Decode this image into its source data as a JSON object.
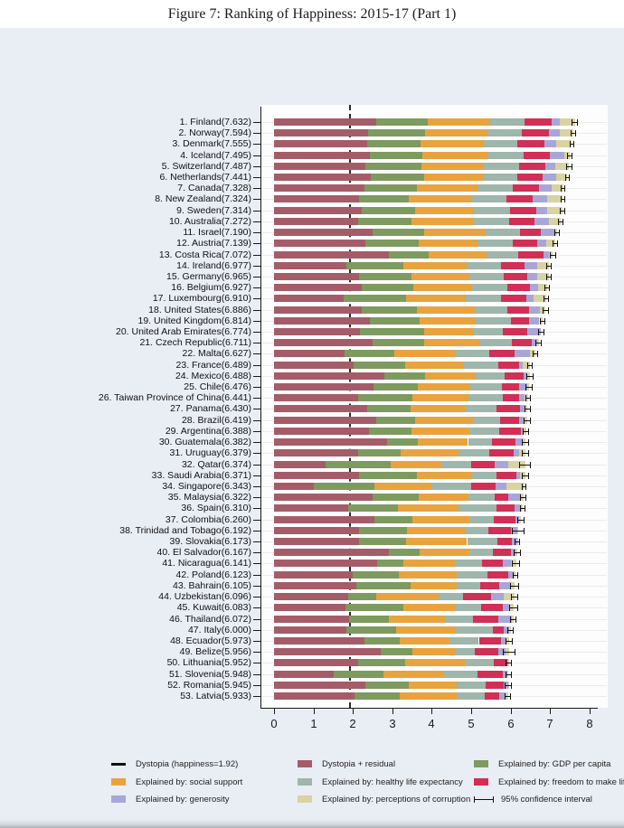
{
  "figure": {
    "title": "Figure 7: Ranking of Happiness: 2015-17 (Part 1)"
  },
  "chart_data": {
    "type": "bar",
    "orientation": "horizontal",
    "stacked": true,
    "title": "Figure 7: Ranking of Happiness: 2015-17 (Part 1)",
    "xlabel": "",
    "ylabel": "",
    "xlim": [
      0,
      8.2
    ],
    "x_ticks": [
      0,
      1,
      2,
      3,
      4,
      5,
      6,
      7,
      8
    ],
    "grid": "faint horizontal row lines",
    "legend_position": "bottom",
    "dystopia_reference_value": 1.92,
    "segment_keys": [
      "dystopia_residual",
      "gdp_per_capita",
      "social_support",
      "healthy_life_expectancy",
      "freedom",
      "generosity",
      "perceptions_of_corruption"
    ],
    "segment_colors": {
      "dystopia_residual": "#a55c69",
      "gdp_per_capita": "#7d9a5f",
      "social_support": "#e8a33e",
      "healthy_life_expectancy": "#9eb6ab",
      "freedom": "#d12f56",
      "generosity": "#a8a6d8",
      "perceptions_of_corruption": "#d9d2a2"
    },
    "countries": [
      {
        "rank": 1,
        "name": "Finland",
        "score": 7.632,
        "segments": [
          2.585,
          1.305,
          1.592,
          0.874,
          0.681,
          0.202,
          0.393
        ],
        "ci": 0.077
      },
      {
        "rank": 2,
        "name": "Norway",
        "score": 7.594,
        "segments": [
          2.383,
          1.456,
          1.582,
          0.861,
          0.686,
          0.286,
          0.34
        ],
        "ci": 0.063
      },
      {
        "rank": 3,
        "name": "Denmark",
        "score": 7.555,
        "segments": [
          2.371,
          1.351,
          1.59,
          0.868,
          0.683,
          0.284,
          0.408
        ],
        "ci": 0.066
      },
      {
        "rank": 4,
        "name": "Iceland",
        "score": 7.495,
        "segments": [
          2.426,
          1.343,
          1.644,
          0.914,
          0.677,
          0.353,
          0.138
        ],
        "ci": 0.063
      },
      {
        "rank": 5,
        "name": "Switzerland",
        "score": 7.487,
        "segments": [
          2.318,
          1.42,
          1.549,
          0.927,
          0.66,
          0.256,
          0.357
        ],
        "ci": 0.074
      },
      {
        "rank": 6,
        "name": "Netherlands",
        "score": 7.441,
        "segments": [
          2.448,
          1.361,
          1.488,
          0.878,
          0.638,
          0.333,
          0.295
        ],
        "ci": 0.05
      },
      {
        "rank": 7,
        "name": "Canada",
        "score": 7.328,
        "segments": [
          2.305,
          1.33,
          1.532,
          0.896,
          0.653,
          0.321,
          0.291
        ],
        "ci": 0.064
      },
      {
        "rank": 8,
        "name": "New Zealand",
        "score": 7.324,
        "segments": [
          2.156,
          1.268,
          1.601,
          0.876,
          0.669,
          0.365,
          0.389
        ],
        "ci": 0.059
      },
      {
        "rank": 9,
        "name": "Sweden",
        "score": 7.314,
        "segments": [
          2.218,
          1.355,
          1.501,
          0.913,
          0.659,
          0.285,
          0.383
        ],
        "ci": 0.063
      },
      {
        "rank": 10,
        "name": "Australia",
        "score": 7.272,
        "segments": [
          2.139,
          1.34,
          1.573,
          0.91,
          0.647,
          0.361,
          0.302
        ],
        "ci": 0.066
      },
      {
        "rank": 11,
        "name": "Israel",
        "score": 7.19,
        "segments": [
          2.496,
          1.301,
          1.559,
          0.883,
          0.533,
          0.354,
          0.064
        ],
        "ci": 0.069
      },
      {
        "rank": 12,
        "name": "Austria",
        "score": 7.139,
        "segments": [
          2.32,
          1.341,
          1.504,
          0.891,
          0.617,
          0.242,
          0.224
        ],
        "ci": 0.066
      },
      {
        "rank": 13,
        "name": "Costa Rica",
        "score": 7.072,
        "segments": [
          2.91,
          1.01,
          1.459,
          0.817,
          0.632,
          0.143,
          0.101
        ],
        "ci": 0.083
      },
      {
        "rank": 14,
        "name": "Ireland",
        "score": 6.977,
        "segments": [
          1.843,
          1.448,
          1.583,
          0.876,
          0.614,
          0.307,
          0.306
        ],
        "ci": 0.069
      },
      {
        "rank": 15,
        "name": "Germany",
        "score": 6.965,
        "segments": [
          2.151,
          1.34,
          1.474,
          0.861,
          0.586,
          0.273,
          0.28
        ],
        "ci": 0.072
      },
      {
        "rank": 16,
        "name": "Belgium",
        "score": 6.927,
        "segments": [
          2.215,
          1.324,
          1.483,
          0.894,
          0.583,
          0.188,
          0.24
        ],
        "ci": 0.062
      },
      {
        "rank": 17,
        "name": "Luxembourg",
        "score": 6.91,
        "segments": [
          1.769,
          1.576,
          1.52,
          0.896,
          0.632,
          0.196,
          0.321
        ],
        "ci": 0.07
      },
      {
        "rank": 18,
        "name": "United States",
        "score": 6.886,
        "segments": [
          2.227,
          1.398,
          1.471,
          0.819,
          0.547,
          0.291,
          0.133
        ],
        "ci": 0.082
      },
      {
        "rank": 19,
        "name": "United Kingdom",
        "score": 6.814,
        "segments": [
          2.441,
          1.244,
          1.433,
          0.888,
          0.464,
          0.262,
          0.082
        ],
        "ci": 0.077
      },
      {
        "rank": 20,
        "name": "United Arab Emirates",
        "score": 6.774,
        "segments": [
          2.188,
          1.626,
          1.266,
          0.726,
          0.608,
          0.36,
          0.0
        ],
        "ci": 0.083
      },
      {
        "rank": 21,
        "name": "Czech Republic",
        "score": 6.711,
        "segments": [
          2.505,
          1.301,
          1.402,
          0.835,
          0.485,
          0.137,
          0.046
        ],
        "ci": 0.075
      },
      {
        "rank": 22,
        "name": "Malta",
        "score": 6.627,
        "segments": [
          1.785,
          1.27,
          1.525,
          0.884,
          0.645,
          0.376,
          0.142
        ],
        "ci": 0.072
      },
      {
        "rank": 23,
        "name": "France",
        "score": 6.489,
        "segments": [
          2.028,
          1.293,
          1.466,
          0.908,
          0.52,
          0.098,
          0.176
        ],
        "ci": 0.066
      },
      {
        "rank": 24,
        "name": "Mexico",
        "score": 6.488,
        "segments": [
          2.794,
          1.038,
          1.252,
          0.761,
          0.479,
          0.069,
          0.095
        ],
        "ci": 0.093
      },
      {
        "rank": 25,
        "name": "Chile",
        "score": 6.476,
        "segments": [
          2.517,
          1.131,
          1.331,
          0.808,
          0.431,
          0.197,
          0.061
        ],
        "ci": 0.092
      },
      {
        "rank": 26,
        "name": "Taiwan Province of China",
        "score": 6.441,
        "segments": [
          2.136,
          1.365,
          1.436,
          0.857,
          0.418,
          0.151,
          0.078
        ],
        "ci": 0.069
      },
      {
        "rank": 27,
        "name": "Panama",
        "score": 6.43,
        "segments": [
          2.359,
          1.112,
          1.395,
          0.779,
          0.597,
          0.125,
          0.063
        ],
        "ci": 0.088
      },
      {
        "rank": 28,
        "name": "Brazil",
        "score": 6.419,
        "segments": [
          2.593,
          0.986,
          1.474,
          0.675,
          0.493,
          0.11,
          0.088
        ],
        "ci": 0.098
      },
      {
        "rank": 29,
        "name": "Argentina",
        "score": 6.388,
        "segments": [
          2.417,
          1.073,
          1.468,
          0.744,
          0.57,
          0.062,
          0.054
        ],
        "ci": 0.09
      },
      {
        "rank": 30,
        "name": "Guatemala",
        "score": 6.382,
        "segments": [
          2.871,
          0.781,
          1.268,
          0.608,
          0.604,
          0.179,
          0.071
        ],
        "ci": 0.093
      },
      {
        "rank": 31,
        "name": "Uruguay",
        "score": 6.379,
        "segments": [
          2.129,
          1.093,
          1.459,
          0.771,
          0.625,
          0.13,
          0.172
        ],
        "ci": 0.085
      },
      {
        "rank": 32,
        "name": "Qatar",
        "score": 6.374,
        "segments": [
          1.301,
          1.649,
          1.303,
          0.748,
          0.604,
          0.33,
          0.439
        ],
        "ci": 0.15
      },
      {
        "rank": 33,
        "name": "Saudi Arabia",
        "score": 6.371,
        "segments": [
          2.151,
          1.48,
          1.368,
          0.633,
          0.509,
          0.098,
          0.132
        ],
        "ci": 0.09
      },
      {
        "rank": 34,
        "name": "Singapore",
        "score": 6.343,
        "segments": [
          1.006,
          1.529,
          1.451,
          1.008,
          0.631,
          0.261,
          0.457
        ],
        "ci": 0.066
      },
      {
        "rank": 35,
        "name": "Malaysia",
        "score": 6.322,
        "segments": [
          2.503,
          1.161,
          1.258,
          0.669,
          0.356,
          0.311,
          0.064
        ],
        "ci": 0.086
      },
      {
        "rank": 36,
        "name": "Spain",
        "score": 6.31,
        "segments": [
          1.891,
          1.251,
          1.538,
          0.965,
          0.449,
          0.142,
          0.074
        ],
        "ci": 0.068
      },
      {
        "rank": 37,
        "name": "Colombia",
        "score": 6.26,
        "segments": [
          2.549,
          0.96,
          1.439,
          0.635,
          0.531,
          0.099,
          0.047
        ],
        "ci": 0.092
      },
      {
        "rank": 38,
        "name": "Trinidad and Tobago",
        "score": 6.192,
        "segments": [
          2.148,
          1.223,
          1.492,
          0.564,
          0.575,
          0.171,
          0.019
        ],
        "ci": 0.16
      },
      {
        "rank": 39,
        "name": "Slovakia",
        "score": 6.173,
        "segments": [
          2.15,
          1.21,
          1.537,
          0.776,
          0.354,
          0.132,
          0.014
        ],
        "ci": 0.077
      },
      {
        "rank": 40,
        "name": "El Salvador",
        "score": 6.167,
        "segments": [
          2.908,
          0.794,
          1.242,
          0.596,
          0.477,
          0.098,
          0.052
        ],
        "ci": 0.096
      },
      {
        "rank": 41,
        "name": "Nicaragua",
        "score": 6.141,
        "segments": [
          2.61,
          0.668,
          1.3,
          0.7,
          0.527,
          0.208,
          0.128
        ],
        "ci": 0.098
      },
      {
        "rank": 42,
        "name": "Poland",
        "score": 6.123,
        "segments": [
          2.0,
          1.176,
          1.448,
          0.781,
          0.546,
          0.108,
          0.064
        ],
        "ci": 0.077
      },
      {
        "rank": 43,
        "name": "Bahrain",
        "score": 6.105,
        "segments": [
          2.087,
          1.366,
          1.171,
          0.604,
          0.476,
          0.291,
          0.11
        ],
        "ci": 0.118
      },
      {
        "rank": 44,
        "name": "Uzbekistan",
        "score": 6.096,
        "segments": [
          1.877,
          0.719,
          1.584,
          0.605,
          0.724,
          0.328,
          0.259
        ],
        "ci": 0.089
      },
      {
        "rank": 45,
        "name": "Kuwait",
        "score": 6.083,
        "segments": [
          1.806,
          1.474,
          1.301,
          0.675,
          0.554,
          0.167,
          0.106
        ],
        "ci": 0.11
      },
      {
        "rank": 46,
        "name": "Thailand",
        "score": 6.072,
        "segments": [
          1.902,
          1.016,
          1.417,
          0.707,
          0.637,
          0.364,
          0.029
        ],
        "ci": 0.084
      },
      {
        "rank": 47,
        "name": "Italy",
        "score": 6.0,
        "segments": [
          1.843,
          1.264,
          1.501,
          0.946,
          0.281,
          0.137,
          0.028
        ],
        "ci": 0.075
      },
      {
        "rank": 48,
        "name": "Ecuador",
        "score": 5.973,
        "segments": [
          2.291,
          0.896,
          1.271,
          0.737,
          0.559,
          0.121,
          0.098
        ],
        "ci": 0.092
      },
      {
        "rank": 49,
        "name": "Belize",
        "score": 5.956,
        "segments": [
          2.709,
          0.807,
          1.101,
          0.474,
          0.593,
          0.183,
          0.089
        ],
        "ci": 0.16
      },
      {
        "rank": 50,
        "name": "Lithuania",
        "score": 5.952,
        "segments": [
          2.13,
          1.197,
          1.527,
          0.716,
          0.35,
          0.026,
          0.006
        ],
        "ci": 0.077
      },
      {
        "rank": 51,
        "name": "Slovenia",
        "score": 5.948,
        "segments": [
          1.524,
          1.258,
          1.523,
          0.857,
          0.632,
          0.12,
          0.034
        ],
        "ci": 0.074
      },
      {
        "rank": 52,
        "name": "Romania",
        "score": 5.945,
        "segments": [
          2.308,
          1.107,
          1.221,
          0.742,
          0.45,
          0.112,
          0.005
        ],
        "ci": 0.094
      },
      {
        "rank": 53,
        "name": "Latvia",
        "score": 5.933,
        "segments": [
          2.038,
          1.148,
          1.454,
          0.712,
          0.364,
          0.153,
          0.064
        ],
        "ci": 0.08
      }
    ]
  },
  "legend": {
    "items": [
      {
        "label": "Dystopia (happiness=1.92)",
        "icon": "line",
        "color": "#111111",
        "col": 0,
        "row": 0
      },
      {
        "label": "Dystopia + residual",
        "icon": "box",
        "color": "#a55c69",
        "col": 1,
        "row": 0
      },
      {
        "label": "Explained by: GDP per capita",
        "icon": "box",
        "color": "#7d9a5f",
        "col": 2,
        "row": 0
      },
      {
        "label": "Explained by: social support",
        "icon": "box",
        "color": "#e8a33e",
        "col": 0,
        "row": 1
      },
      {
        "label": "Explained by: healthy life expectancy",
        "icon": "box",
        "color": "#9eb6ab",
        "col": 1,
        "row": 1
      },
      {
        "label": "Explained by: freedom to make life choices",
        "icon": "box",
        "color": "#d12f56",
        "col": 2,
        "row": 1
      },
      {
        "label": "Explained by: generosity",
        "icon": "box",
        "color": "#a8a6d8",
        "col": 0,
        "row": 2
      },
      {
        "label": "Explained by: perceptions of corruption",
        "icon": "box",
        "color": "#d9d2a2",
        "col": 1,
        "row": 2
      },
      {
        "label": "95% confidence interval",
        "icon": "ci",
        "color": "#111111",
        "col": 2,
        "row": 2
      }
    ]
  },
  "colors": {
    "page_background": "#ffffff",
    "panel_background": "#e9edf4",
    "plot_background": "#fdfdfe",
    "axis": "#1a1a1a",
    "gridline": "#ebebeb"
  }
}
